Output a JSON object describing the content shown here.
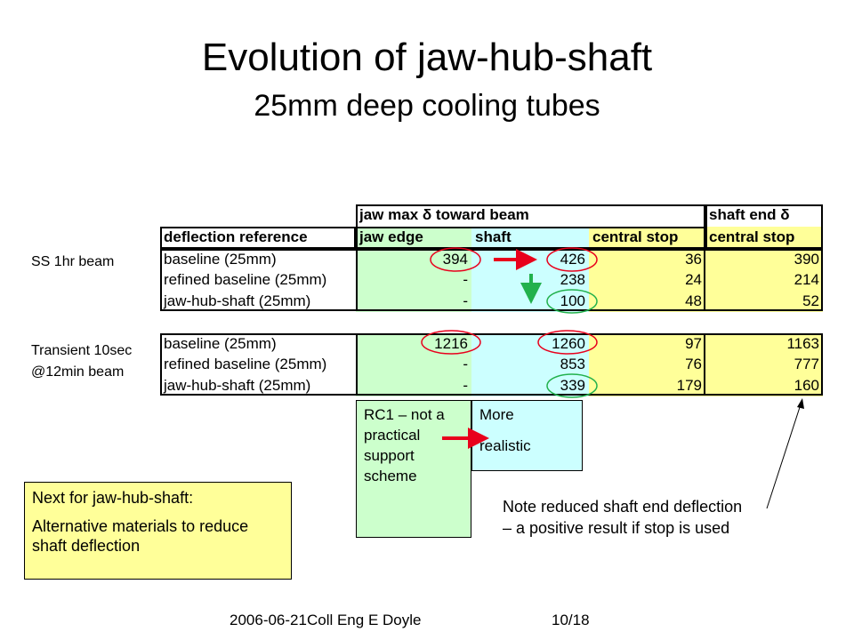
{
  "title": "Evolution of jaw-hub-shaft",
  "subtitle": "25mm deep cooling tubes",
  "table": {
    "group_headers": [
      "jaw max δ toward beam",
      "shaft end δ"
    ],
    "columns": [
      "deflection reference",
      "jaw edge",
      "shaft",
      "central stop",
      "central stop"
    ],
    "sections": [
      {
        "label": "SS 1hr beam",
        "rows": [
          [
            "baseline (25mm)",
            394,
            426,
            36,
            390
          ],
          [
            "refined baseline (25mm)",
            "-",
            238,
            24,
            214
          ],
          [
            "jaw-hub-shaft (25mm)",
            "-",
            100,
            48,
            52
          ]
        ]
      },
      {
        "label": "Transient 10sec @12min beam",
        "rows": [
          [
            "baseline (25mm)",
            1216,
            1260,
            97,
            1163
          ],
          [
            "refined baseline (25mm)",
            "-",
            853,
            76,
            777
          ],
          [
            "jaw-hub-shaft (25mm)",
            "-",
            339,
            179,
            160
          ]
        ]
      }
    ]
  },
  "boxes": {
    "rc1": "RC1 – not a practical support scheme",
    "realistic": [
      "More",
      "realistic"
    ],
    "next": {
      "heading": "Next for jaw-hub-shaft:",
      "text": "Alternative materials to reduce shaft deflection"
    },
    "note": "Note reduced shaft end deflection – a positive result if stop is used"
  },
  "footer": {
    "left": "2006-06-21Coll Eng E Doyle",
    "right": "10/18"
  }
}
